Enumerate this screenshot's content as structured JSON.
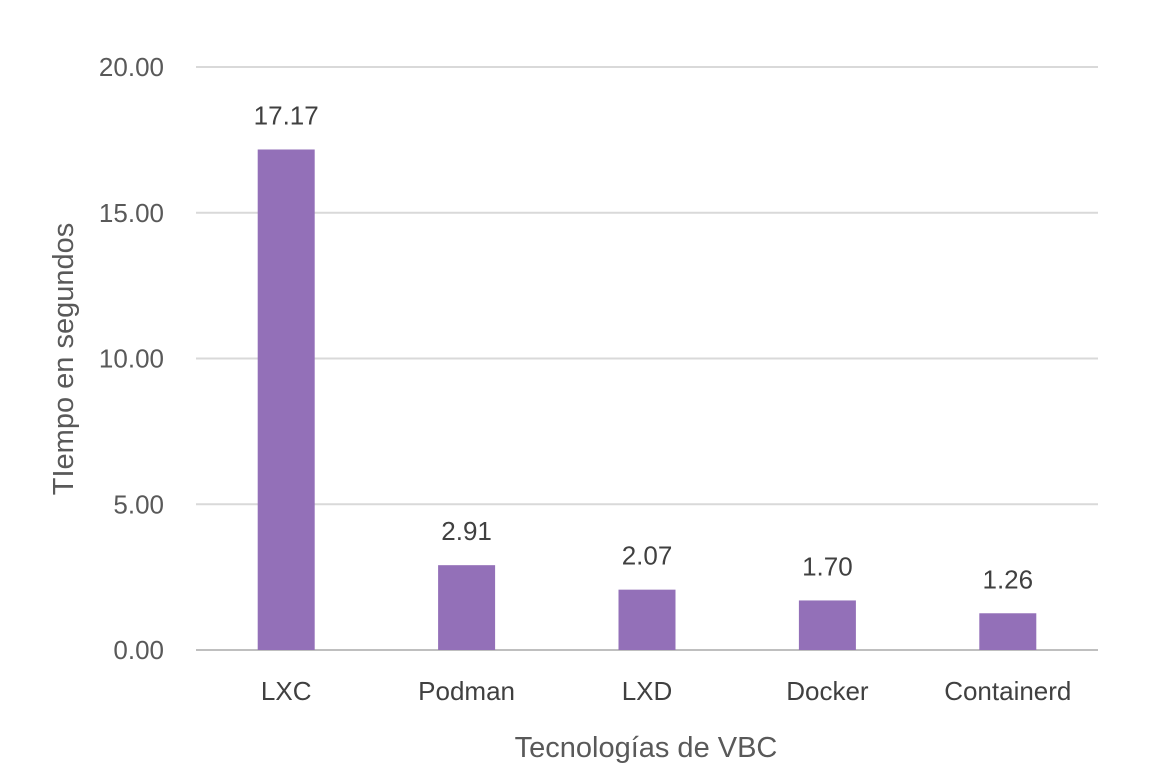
{
  "chart_data": {
    "type": "bar",
    "title": "",
    "xlabel": "Tecnologías de VBC",
    "ylabel": "TIempo en segundos",
    "categories": [
      "LXC",
      "Podman",
      "LXD",
      "Docker",
      "Containerd"
    ],
    "values": [
      17.17,
      2.91,
      2.07,
      1.7,
      1.26
    ],
    "value_labels": [
      "17.17",
      "2.91",
      "2.07",
      "1.70",
      "1.26"
    ],
    "ylim": [
      0,
      20
    ],
    "yticks": [
      0,
      5,
      10,
      15,
      20
    ],
    "ytick_labels": [
      "0.00",
      "5.00",
      "10.00",
      "15.00",
      "20.00"
    ],
    "grid": true,
    "legend": "none",
    "colors": {
      "bar": "#9370B8",
      "grid": "#D9D9D9",
      "axis": "#BFBFBF"
    }
  }
}
